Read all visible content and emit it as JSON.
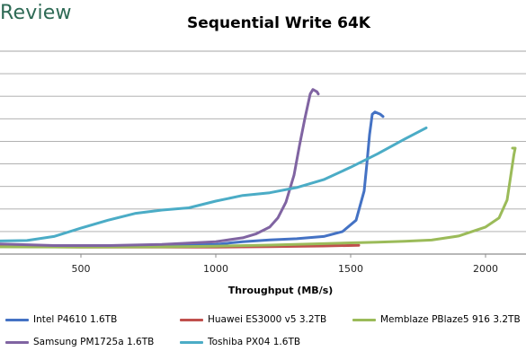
{
  "brand": "Review",
  "chart_data": {
    "type": "line",
    "title": "Sequential Write 64K",
    "xlabel": "Throughput (MB/s)",
    "ylabel": "",
    "xlim": [
      200,
      2150
    ],
    "ylim": [
      0,
      9
    ],
    "x_ticks": [
      500,
      1000,
      1500,
      2000
    ],
    "y_ticks": [
      1,
      2,
      3,
      4,
      5,
      6,
      7,
      8,
      9
    ],
    "y_tick_labels_visible": false,
    "grid": "horizontal",
    "legend_position": "bottom",
    "series": [
      {
        "name": "Intel P4610 1.6TB",
        "color": "#4472c4",
        "points": [
          [
            200,
            0.42
          ],
          [
            400,
            0.36
          ],
          [
            600,
            0.35
          ],
          [
            800,
            0.37
          ],
          [
            1000,
            0.43
          ],
          [
            1100,
            0.55
          ],
          [
            1200,
            0.63
          ],
          [
            1300,
            0.68
          ],
          [
            1400,
            0.78
          ],
          [
            1470,
            1.0
          ],
          [
            1520,
            1.5
          ],
          [
            1550,
            2.8
          ],
          [
            1560,
            4.0
          ],
          [
            1570,
            5.3
          ],
          [
            1580,
            6.2
          ],
          [
            1590,
            6.3
          ],
          [
            1610,
            6.2
          ],
          [
            1620,
            6.1
          ]
        ]
      },
      {
        "name": "Huawei ES3000 v5 3.2TB",
        "color": "#c0504d",
        "points": [
          [
            200,
            0.34
          ],
          [
            500,
            0.31
          ],
          [
            800,
            0.31
          ],
          [
            1000,
            0.31
          ],
          [
            1200,
            0.33
          ],
          [
            1400,
            0.36
          ],
          [
            1530,
            0.39
          ]
        ]
      },
      {
        "name": "Memblaze PBlaze5 916 3.2TB",
        "color": "#9bbb59",
        "points": [
          [
            200,
            0.32
          ],
          [
            500,
            0.31
          ],
          [
            800,
            0.32
          ],
          [
            1000,
            0.35
          ],
          [
            1200,
            0.4
          ],
          [
            1400,
            0.46
          ],
          [
            1600,
            0.53
          ],
          [
            1700,
            0.57
          ],
          [
            1800,
            0.62
          ],
          [
            1900,
            0.8
          ],
          [
            2000,
            1.2
          ],
          [
            2050,
            1.6
          ],
          [
            2080,
            2.4
          ],
          [
            2095,
            3.6
          ],
          [
            2105,
            4.4
          ],
          [
            2110,
            4.7
          ],
          [
            2100,
            4.7
          ]
        ]
      },
      {
        "name": "Samsung PM1725a 1.6TB",
        "color": "#8064a2",
        "points": [
          [
            200,
            0.45
          ],
          [
            400,
            0.38
          ],
          [
            600,
            0.38
          ],
          [
            800,
            0.43
          ],
          [
            1000,
            0.55
          ],
          [
            1100,
            0.72
          ],
          [
            1150,
            0.9
          ],
          [
            1200,
            1.2
          ],
          [
            1230,
            1.6
          ],
          [
            1260,
            2.3
          ],
          [
            1290,
            3.5
          ],
          [
            1310,
            4.8
          ],
          [
            1330,
            6.0
          ],
          [
            1350,
            7.1
          ],
          [
            1360,
            7.3
          ],
          [
            1375,
            7.2
          ],
          [
            1380,
            7.1
          ]
        ]
      },
      {
        "name": "Toshiba PX04 1.6TB",
        "color": "#4bacc6",
        "points": [
          [
            200,
            0.58
          ],
          [
            300,
            0.6
          ],
          [
            400,
            0.78
          ],
          [
            500,
            1.15
          ],
          [
            600,
            1.5
          ],
          [
            700,
            1.8
          ],
          [
            800,
            1.95
          ],
          [
            900,
            2.05
          ],
          [
            1000,
            2.35
          ],
          [
            1100,
            2.6
          ],
          [
            1200,
            2.72
          ],
          [
            1300,
            2.95
          ],
          [
            1400,
            3.3
          ],
          [
            1500,
            3.85
          ],
          [
            1600,
            4.45
          ],
          [
            1700,
            5.1
          ],
          [
            1780,
            5.6
          ]
        ]
      }
    ]
  }
}
